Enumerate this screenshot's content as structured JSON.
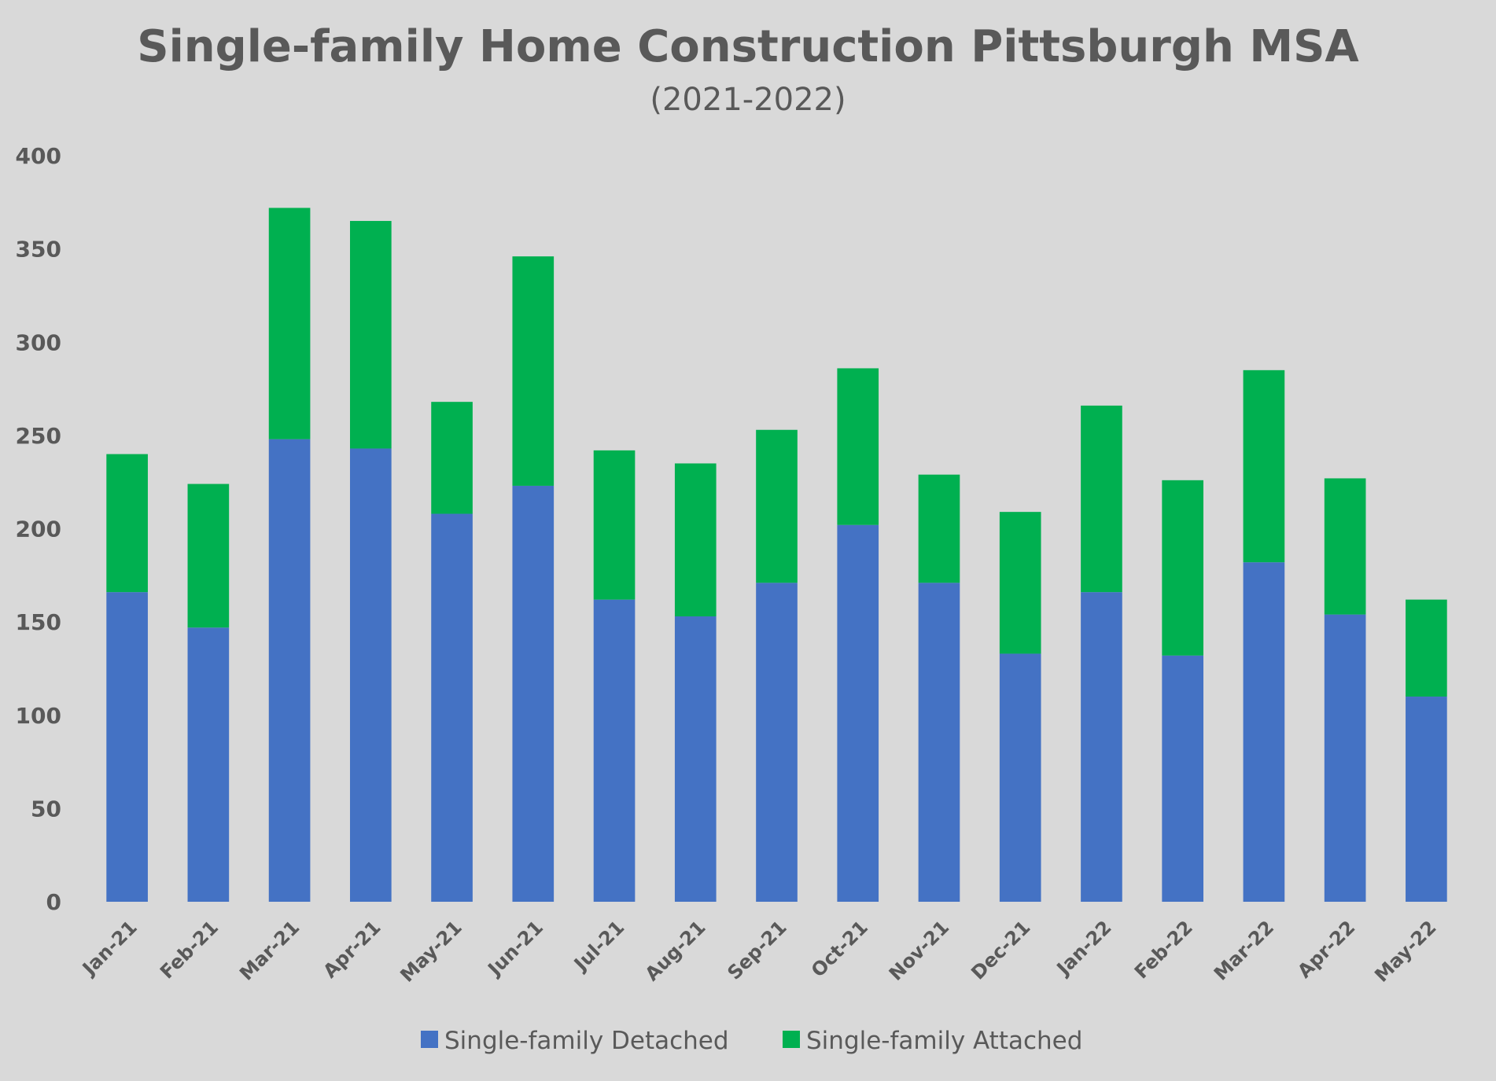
{
  "chart_data": {
    "type": "bar",
    "stacked": true,
    "title": "Single-family Home Construction Pittsburgh MSA",
    "subtitle": "(2021-2022)",
    "xlabel": "",
    "ylabel": "",
    "ylim": [
      0,
      400
    ],
    "yticks": [
      "0",
      "50",
      "100",
      "150",
      "200",
      "250",
      "300",
      "350",
      "400"
    ],
    "grid": false,
    "legend_position": "bottom",
    "categories": [
      "Jan-21",
      "Feb-21",
      "Mar-21",
      "Apr-21",
      "May-21",
      "Jun-21",
      "Jul-21",
      "Aug-21",
      "Sep-21",
      "Oct-21",
      "Nov-21",
      "Dec-21",
      "Jan-22",
      "Feb-22",
      "Mar-22",
      "Apr-22",
      "May-22"
    ],
    "series": [
      {
        "name": "Single-family Detached",
        "color": "#4472c4",
        "values": [
          166,
          147,
          248,
          243,
          208,
          223,
          162,
          153,
          171,
          202,
          171,
          133,
          166,
          132,
          182,
          154,
          110
        ]
      },
      {
        "name": "Single-family Attached",
        "color": "#00b050",
        "values": [
          74,
          77,
          124,
          122,
          60,
          123,
          80,
          82,
          82,
          84,
          58,
          76,
          100,
          94,
          103,
          73,
          52
        ]
      }
    ]
  }
}
